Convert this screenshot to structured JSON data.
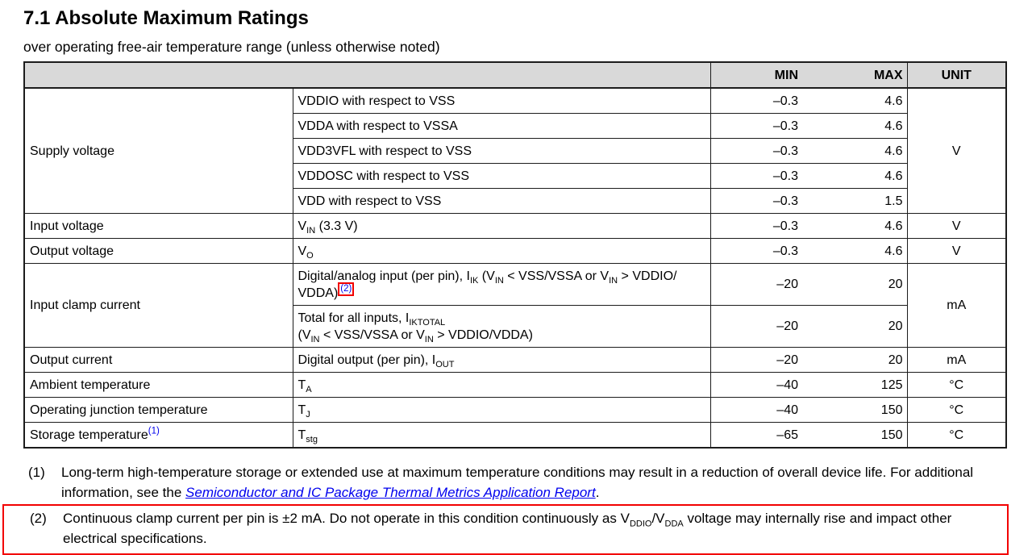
{
  "header": {
    "title": "7.1 Absolute Maximum Ratings",
    "subtitle": "over operating free-air temperature range (unless otherwise noted)"
  },
  "colors": {
    "link_blue": "#0000ee",
    "highlight_red": "#f20000",
    "table_header_gray": "#d9d9d9"
  },
  "table": {
    "headers": {
      "min": "MIN",
      "max": "MAX",
      "unit": "UNIT"
    },
    "rows": [
      {
        "category": "Supply voltage",
        "catRowspan": 5,
        "desc": "VDDIO with respect to VSS",
        "min": "–0.3",
        "max": "4.6",
        "unit": "V",
        "unitRowspan": 5
      },
      {
        "desc": "VDDA with respect to VSSA",
        "min": "–0.3",
        "max": "4.6"
      },
      {
        "desc": "VDD3VFL with respect to VSS",
        "min": "–0.3",
        "max": "4.6"
      },
      {
        "desc": "VDDOSC with respect to VSS",
        "min": "–0.3",
        "max": "4.6"
      },
      {
        "desc": "VDD with respect to VSS",
        "min": "–0.3",
        "max": "1.5"
      },
      {
        "category": "Input voltage",
        "desc": "V~IN~ (3.3 V)",
        "min": "–0.3",
        "max": "4.6",
        "unit": "V"
      },
      {
        "category": "Output voltage",
        "desc": "V~O~",
        "min": "–0.3",
        "max": "4.6",
        "unit": "V"
      },
      {
        "category": "Input clamp current",
        "catRowspan": 2,
        "desc": "Digital/analog input (per pin), I~IK~ (V~IN~ < VSS/VSSA or V~IN~ > VDDIO/\nVDDA)@(2)@",
        "min": "–20",
        "max": "20",
        "unit": "mA",
        "unitRowspan": 2
      },
      {
        "desc": "Total for all inputs, I~IKTOTAL~\n(V~IN~ < VSS/VSSA or V~IN~ > VDDIO/VDDA)",
        "min": "–20",
        "max": "20"
      },
      {
        "category": "Output current",
        "desc": "Digital output (per pin), I~OUT~",
        "min": "–20",
        "max": "20",
        "unit": "mA"
      },
      {
        "category": "Ambient temperature",
        "desc": "T~A~",
        "min": "–40",
        "max": "125",
        "unit": "°C"
      },
      {
        "category": "Operating junction temperature",
        "desc": "T~J~",
        "min": "–40",
        "max": "150",
        "unit": "°C"
      },
      {
        "category": "Storage temperature^(1)^",
        "desc": "T~stg~",
        "min": "–65",
        "max": "150",
        "unit": "°C"
      }
    ]
  },
  "footnotes": [
    {
      "num": "(1)",
      "text_before": "Long-term high-temperature storage or extended use at maximum temperature conditions may result in a reduction of overall device life. For additional information, see the ",
      "link_text": "Semiconductor and IC Package Thermal Metrics Application Report",
      "text_after": "."
    },
    {
      "num": "(2)",
      "text": "Continuous clamp current per pin is ±2 mA. Do not operate in this condition continuously as V~DDIO~/V~DDA~ voltage may internally rise and impact other electrical specifications.",
      "highlighted": true
    }
  ]
}
